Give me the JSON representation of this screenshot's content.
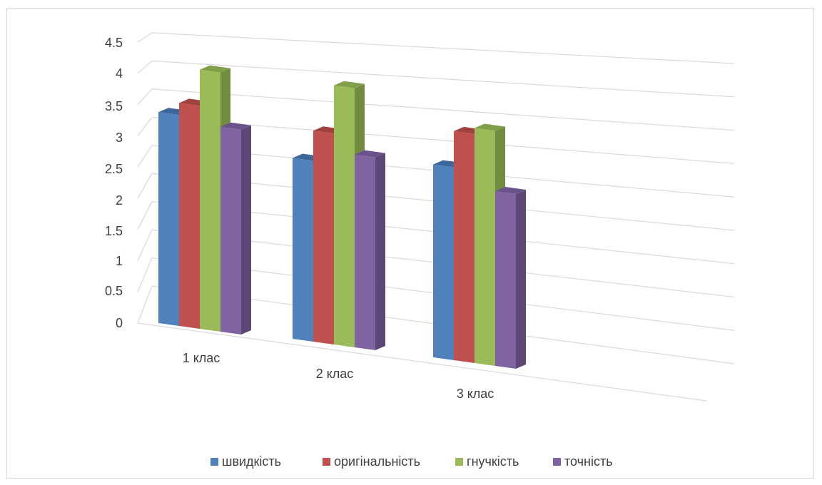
{
  "chart_data": {
    "type": "bar",
    "variant": "3d-clustered-column",
    "categories": [
      "1 клас",
      "2 клас",
      "3 клас"
    ],
    "series": [
      {
        "name": "швидкість",
        "values": [
          3.5,
          3.0,
          3.2
        ],
        "color": "#4f81bd",
        "side_color": "#385d8a",
        "top_color": "#3e6799"
      },
      {
        "name": "оригінальність",
        "values": [
          3.7,
          3.5,
          3.8
        ],
        "color": "#c0504d",
        "side_color": "#8c3836",
        "top_color": "#a14240"
      },
      {
        "name": "гнучкість",
        "values": [
          4.3,
          4.3,
          3.9
        ],
        "color": "#9bbb59",
        "side_color": "#718c3e",
        "top_color": "#809f48"
      },
      {
        "name": "точність",
        "values": [
          3.4,
          3.2,
          2.9
        ],
        "color": "#8064a2",
        "side_color": "#5c4777",
        "top_color": "#6a538a"
      }
    ],
    "y_ticks": [
      "0",
      "0.5",
      "1",
      "1.5",
      "2",
      "2.5",
      "3",
      "3.5",
      "4",
      "4.5"
    ],
    "ylim": [
      0,
      4.5
    ],
    "grid": true,
    "legend_position": "bottom",
    "title": "",
    "xlabel": "",
    "ylabel": ""
  }
}
